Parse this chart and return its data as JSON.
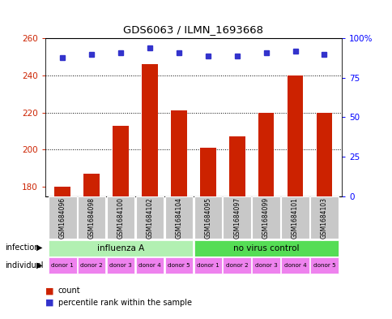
{
  "title": "GDS6063 / ILMN_1693668",
  "samples": [
    "GSM1684096",
    "GSM1684098",
    "GSM1684100",
    "GSM1684102",
    "GSM1684104",
    "GSM1684095",
    "GSM1684097",
    "GSM1684099",
    "GSM1684101",
    "GSM1684103"
  ],
  "counts": [
    180,
    187,
    213,
    246,
    221,
    201,
    207,
    220,
    240,
    220
  ],
  "percentile_ranks": [
    88,
    90,
    91,
    94,
    91,
    89,
    89,
    91,
    92,
    90
  ],
  "ymin": 175,
  "ymax": 260,
  "yticks": [
    180,
    200,
    220,
    240,
    260
  ],
  "y2min": 0,
  "y2max": 100,
  "y2ticks": [
    0,
    25,
    50,
    75,
    100
  ],
  "infection_groups": [
    {
      "label": "influenza A",
      "start": 0,
      "end": 5,
      "color": "#b2f0b2"
    },
    {
      "label": "no virus control",
      "start": 5,
      "end": 10,
      "color": "#55dd55"
    }
  ],
  "individual_labels": [
    "donor 1",
    "donor 2",
    "donor 3",
    "donor 4",
    "donor 5",
    "donor 1",
    "donor 2",
    "donor 3",
    "donor 4",
    "donor 5"
  ],
  "individual_color": "#ee82ee",
  "bar_color": "#cc2200",
  "dot_color": "#3333cc",
  "sample_box_color": "#c8c8c8",
  "legend_count_color": "#cc2200",
  "legend_pct_color": "#3333cc"
}
